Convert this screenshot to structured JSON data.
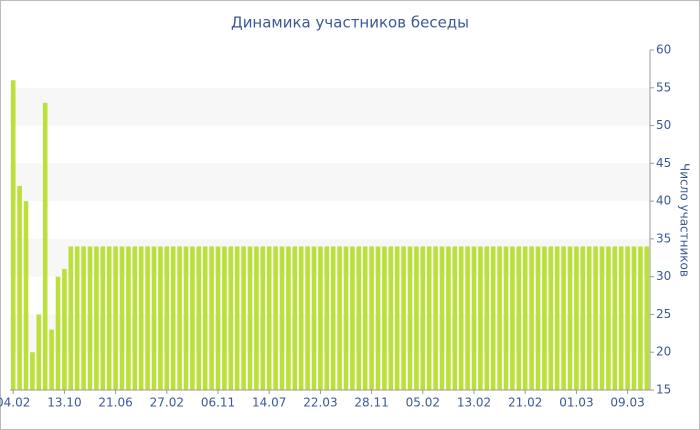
{
  "chart_data": {
    "type": "bar",
    "title": "Динамика участников беседы",
    "y_label": "Число участников",
    "categories": [
      "04.02",
      null,
      null,
      null,
      null,
      null,
      null,
      null,
      "13.10",
      null,
      null,
      null,
      null,
      null,
      null,
      null,
      "21.06",
      null,
      null,
      null,
      null,
      null,
      null,
      null,
      "27.02",
      null,
      null,
      null,
      null,
      null,
      null,
      null,
      "06.11",
      null,
      null,
      null,
      null,
      null,
      null,
      null,
      "14.07",
      null,
      null,
      null,
      null,
      null,
      null,
      null,
      "22.03",
      null,
      null,
      null,
      null,
      null,
      null,
      null,
      "28.11",
      null,
      null,
      null,
      null,
      null,
      null,
      null,
      "05.02",
      null,
      null,
      null,
      null,
      null,
      null,
      null,
      "13.02",
      null,
      null,
      null,
      null,
      null,
      null,
      null,
      "21.02",
      null,
      null,
      null,
      null,
      null,
      null,
      null,
      "01.03",
      null,
      null,
      null,
      null,
      null,
      null,
      null,
      "09.03",
      null,
      null,
      null
    ],
    "values": [
      56,
      42,
      40,
      20,
      25,
      53,
      23,
      30,
      31,
      34,
      34,
      34,
      34,
      34,
      34,
      34,
      34,
      34,
      34,
      34,
      34,
      34,
      34,
      34,
      34,
      34,
      34,
      34,
      34,
      34,
      34,
      34,
      34,
      34,
      34,
      34,
      34,
      34,
      34,
      34,
      34,
      34,
      34,
      34,
      34,
      34,
      34,
      34,
      34,
      34,
      34,
      34,
      34,
      34,
      34,
      34,
      34,
      34,
      34,
      34,
      34,
      34,
      34,
      34,
      34,
      34,
      34,
      34,
      34,
      34,
      34,
      34,
      34,
      34,
      34,
      34,
      34,
      34,
      34,
      34,
      34,
      34,
      34,
      34,
      34,
      34,
      34,
      34,
      34,
      34,
      34,
      34,
      34,
      34,
      34,
      34,
      34,
      34,
      34,
      34
    ],
    "color": "#bbe03a",
    "ylim": [
      15,
      60
    ],
    "yticks": [
      15,
      20,
      25,
      30,
      35,
      40,
      45,
      50,
      55,
      60
    ],
    "grid": true,
    "y_axis_side": "right"
  }
}
